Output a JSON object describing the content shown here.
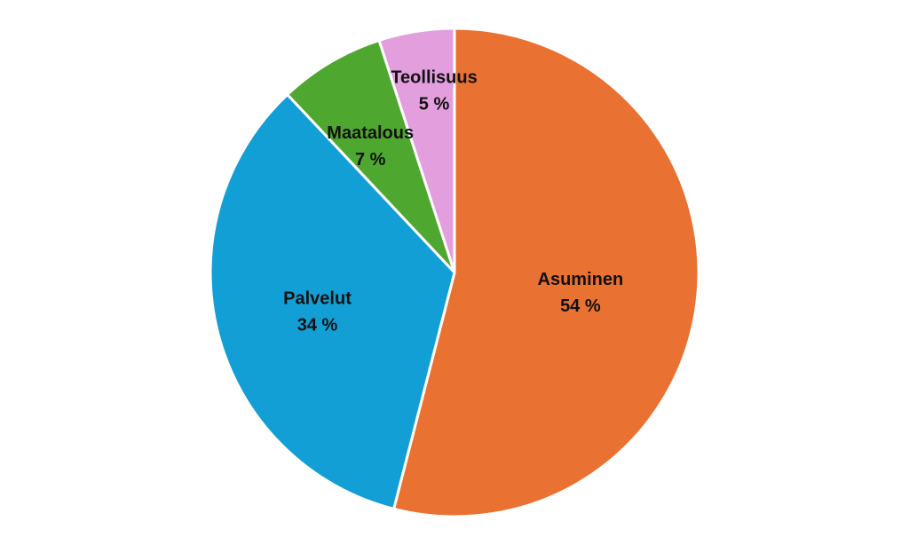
{
  "chart_data": {
    "type": "pie",
    "title": "",
    "start": "12 o'clock, clockwise",
    "slices": [
      {
        "label": "Asuminen",
        "value": 54,
        "display": "54 %",
        "color": "#E97132"
      },
      {
        "label": "Palvelut",
        "value": 34,
        "display": "34 %",
        "color": "#129FD6"
      },
      {
        "label": "Maatalous",
        "value": 7,
        "display": "7 %",
        "color": "#4EA72E"
      },
      {
        "label": "Teollisuus",
        "value": 5,
        "display": "5 %",
        "color": "#E39FDD"
      }
    ]
  }
}
